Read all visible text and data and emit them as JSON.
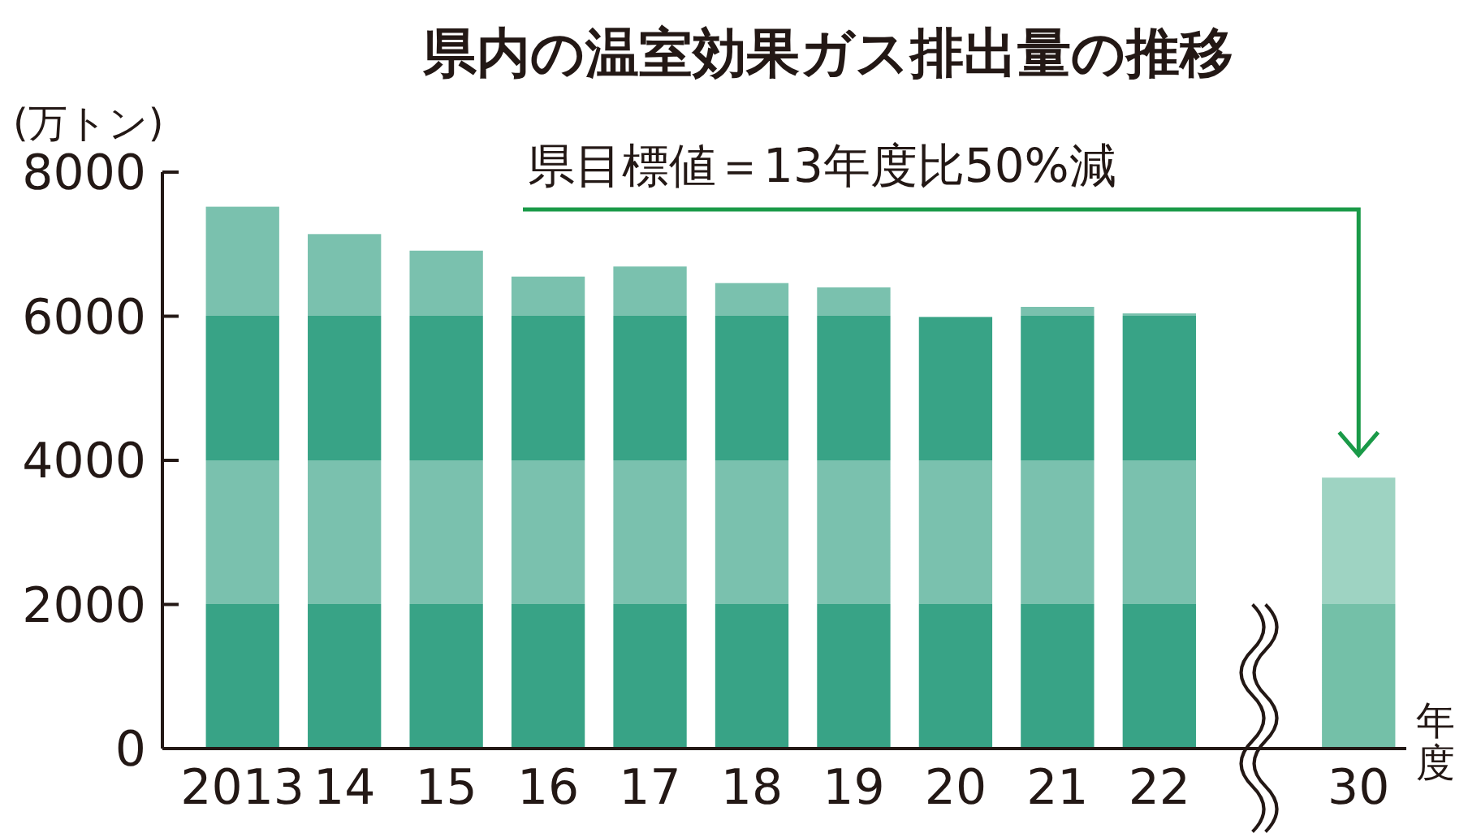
{
  "chart_data": {
    "type": "bar",
    "title": "県内の温室効果ガス排出量の推移",
    "ylabel": "(万トン)",
    "xlabel": "年度",
    "annotations": [
      "県目標値＝13年度比50%減"
    ],
    "categories": [
      "2013",
      "14",
      "15",
      "16",
      "17",
      "18",
      "19",
      "20",
      "21",
      "22",
      "30"
    ],
    "values": [
      7520,
      7140,
      6910,
      6550,
      6690,
      6460,
      6400,
      5990,
      6130,
      6040,
      3760
    ],
    "colors": [
      "#38a386",
      "#38a386",
      "#38a386",
      "#38a386",
      "#38a386",
      "#38a386",
      "#38a386",
      "#38a386",
      "#38a386",
      "#38a386",
      "#74c0a8"
    ],
    "ylim": [
      0,
      8000
    ],
    "yticks": [
      0,
      2000,
      4000,
      6000,
      8000
    ],
    "grid": false
  }
}
